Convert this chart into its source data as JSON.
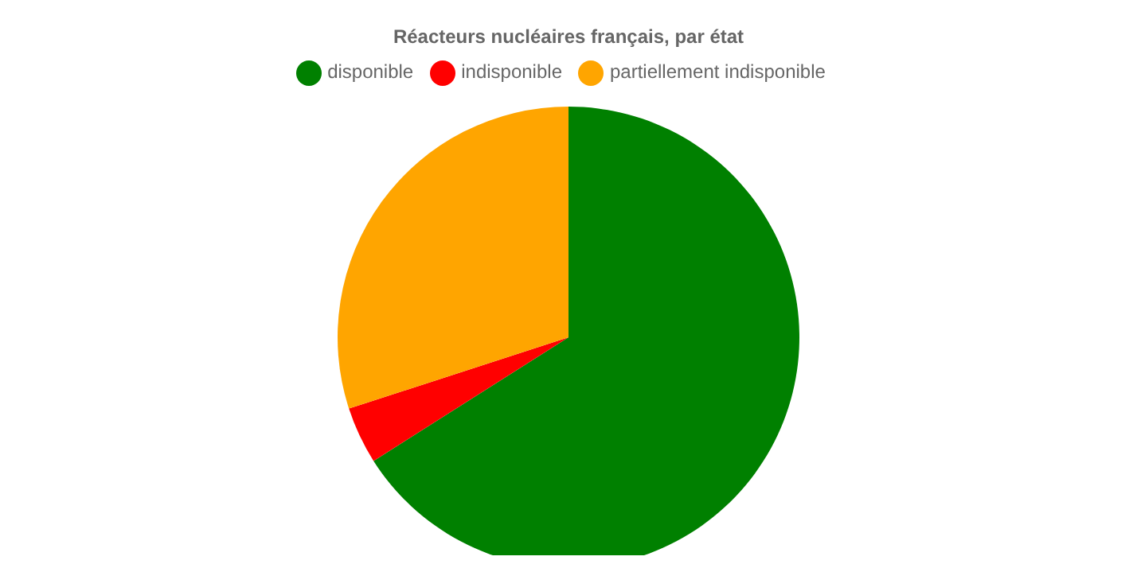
{
  "chart_data": {
    "type": "pie",
    "title": "Réacteurs nucléaires français, par état",
    "categories": [
      "disponible",
      "indisponible",
      "partiellement indisponible"
    ],
    "values": [
      66,
      4,
      30
    ],
    "colors": [
      "#008000",
      "#ff0000",
      "#ffa500"
    ],
    "legend": "top"
  }
}
